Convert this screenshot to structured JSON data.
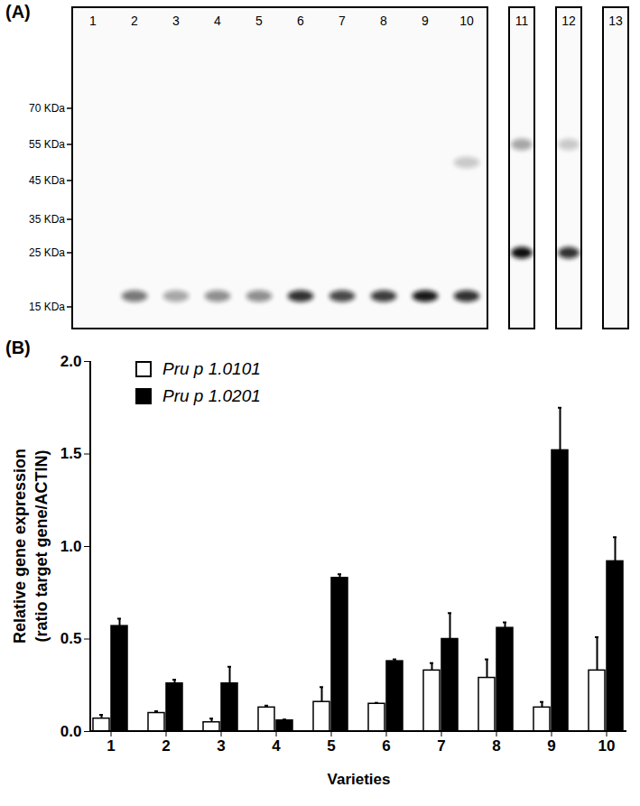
{
  "blot": {
    "label": "(A)",
    "lane_groups": [
      [
        "1",
        "2",
        "3",
        "4",
        "5",
        "6",
        "7",
        "8",
        "9",
        "10"
      ],
      [
        "11"
      ],
      [
        "12"
      ],
      [
        "13"
      ]
    ],
    "markers": [
      {
        "value": 70,
        "label": "70 KDa"
      },
      {
        "value": 55,
        "label": "55 KDa"
      },
      {
        "value": 45,
        "label": "45 KDa"
      },
      {
        "value": 35,
        "label": "35 KDa"
      },
      {
        "value": 25,
        "label": "25 KDa"
      },
      {
        "value": 15,
        "label": "15 KDa"
      }
    ],
    "bands": [
      {
        "lane": "2",
        "kda": 17,
        "intensity": 0.55
      },
      {
        "lane": "3",
        "kda": 17,
        "intensity": 0.35
      },
      {
        "lane": "4",
        "kda": 17,
        "intensity": 0.45
      },
      {
        "lane": "5",
        "kda": 17,
        "intensity": 0.45
      },
      {
        "lane": "6",
        "kda": 17,
        "intensity": 0.85
      },
      {
        "lane": "7",
        "kda": 17,
        "intensity": 0.75
      },
      {
        "lane": "8",
        "kda": 17,
        "intensity": 0.8
      },
      {
        "lane": "9",
        "kda": 17,
        "intensity": 0.95
      },
      {
        "lane": "10",
        "kda": 17,
        "intensity": 0.85
      },
      {
        "lane": "10",
        "kda": 50,
        "intensity": 0.2
      },
      {
        "lane": "11",
        "kda": 25,
        "intensity": 1
      },
      {
        "lane": "11",
        "kda": 55,
        "intensity": 0.35
      },
      {
        "lane": "12",
        "kda": 25,
        "intensity": 0.85
      },
      {
        "lane": "12",
        "kda": 55,
        "intensity": 0.2
      }
    ]
  },
  "chart_data": {
    "type": "bar",
    "title": "(B)",
    "xlabel": "Varieties",
    "ylabel": [
      "Relative gene expression",
      "(ratio target gene/ACTIN)"
    ],
    "categories": [
      1,
      2,
      3,
      4,
      5,
      6,
      7,
      8,
      9,
      10
    ],
    "series": [
      {
        "name": "Pru p 1.0101",
        "color": "#ffffff",
        "values": [
          0.07,
          0.1,
          0.05,
          0.13,
          0.16,
          0.15,
          0.33,
          0.29,
          0.13,
          0.33
        ],
        "errors": [
          0.02,
          0.01,
          0.02,
          0.01,
          0.08,
          0.005,
          0.04,
          0.1,
          0.03,
          0.18
        ]
      },
      {
        "name": "Pru p 1.0201",
        "color": "#000000",
        "values": [
          0.57,
          0.26,
          0.26,
          0.06,
          0.83,
          0.38,
          0.5,
          0.56,
          1.52,
          0.92
        ],
        "errors": [
          0.04,
          0.02,
          0.09,
          0.005,
          0.02,
          0.01,
          0.14,
          0.03,
          0.23,
          0.13
        ]
      }
    ],
    "ylim": [
      0,
      2
    ],
    "yticks": [
      {
        "value": 0,
        "label": "0.0"
      },
      {
        "value": 0.5,
        "label": "0.5"
      },
      {
        "value": 1,
        "label": "1.0"
      },
      {
        "value": 1.5,
        "label": "1.5"
      },
      {
        "value": 2,
        "label": "2.0"
      }
    ],
    "legend": "top-left",
    "grid": false
  }
}
